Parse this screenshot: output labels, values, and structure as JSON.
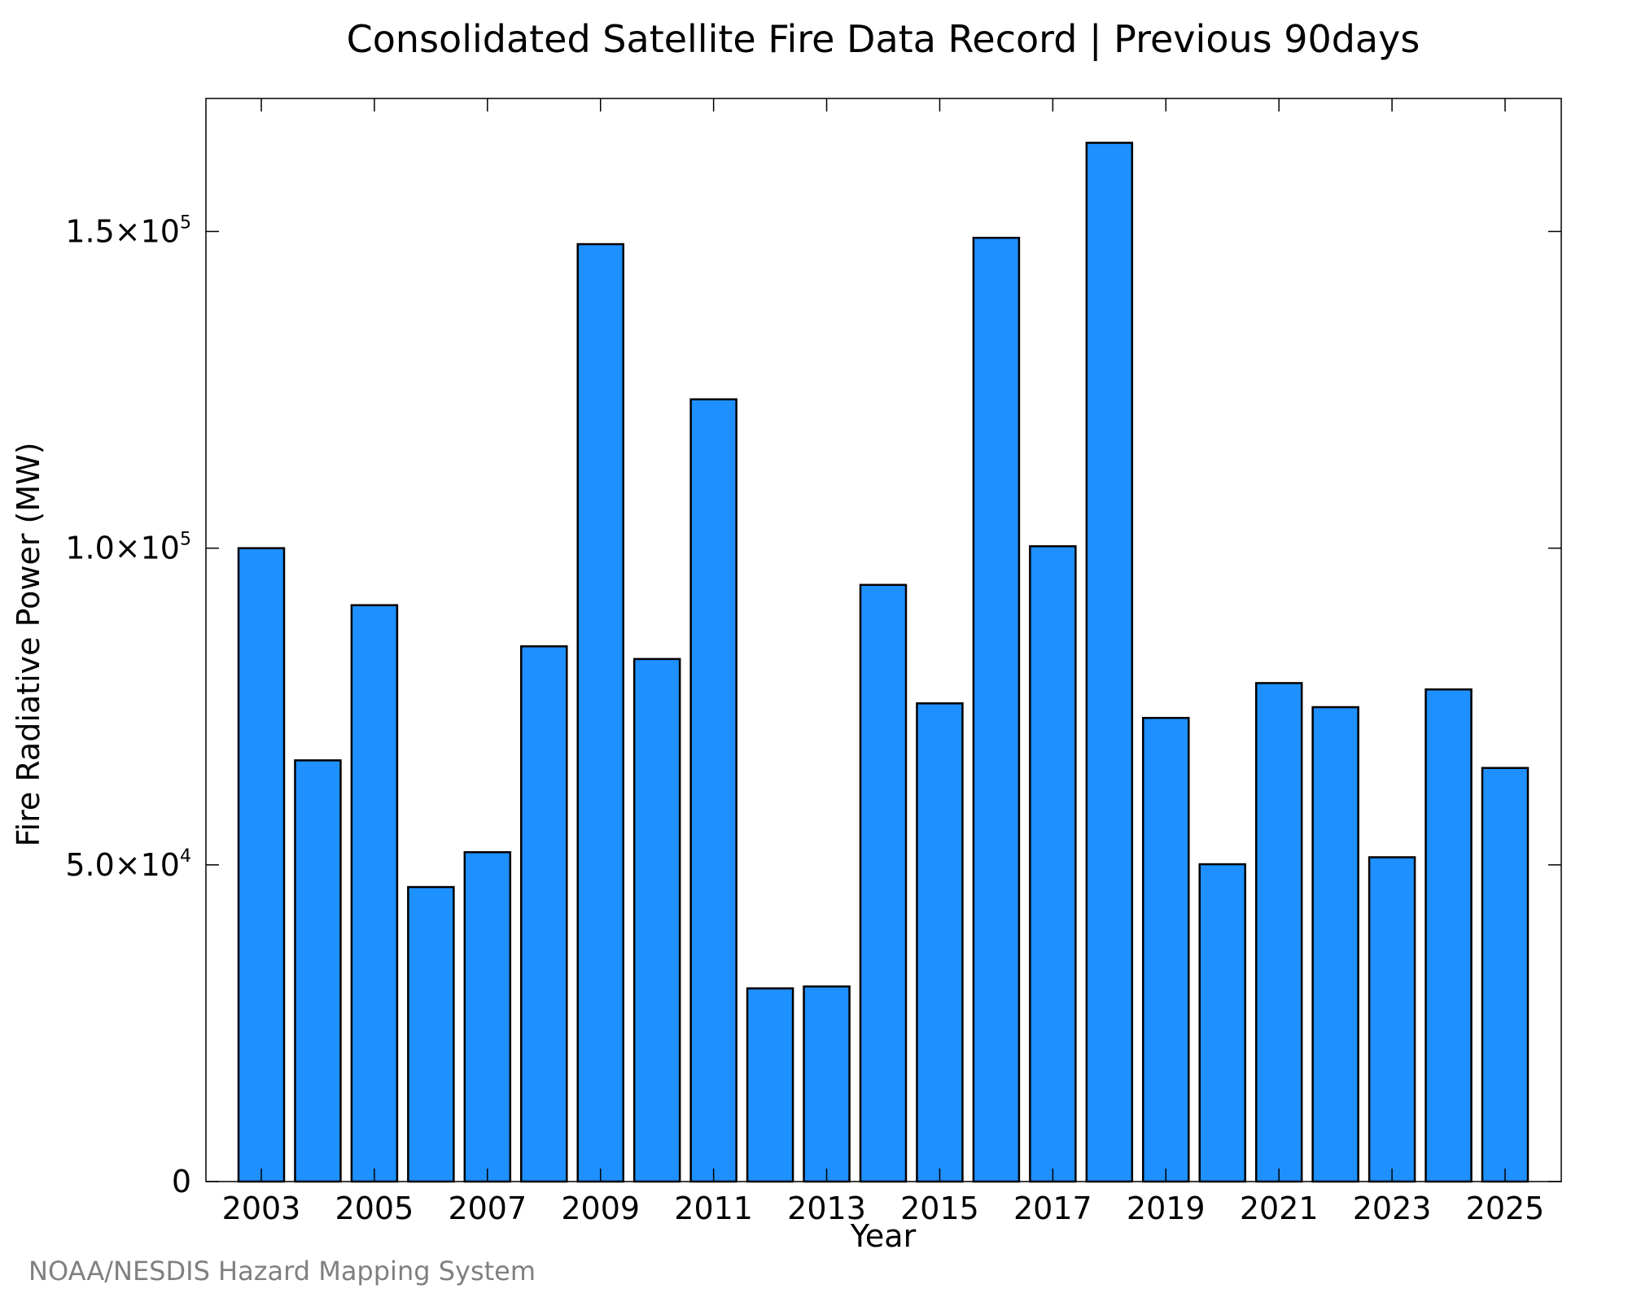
{
  "chart_data": {
    "type": "bar",
    "title": "Consolidated Satellite Fire Data Record | Previous 90days",
    "xlabel": "Year",
    "ylabel": "Fire Radiative Power (MW)",
    "categories": [
      "2003",
      "2004",
      "2005",
      "2006",
      "2007",
      "2008",
      "2009",
      "2010",
      "2011",
      "2012",
      "2013",
      "2014",
      "2015",
      "2016",
      "2017",
      "2018",
      "2019",
      "2020",
      "2021",
      "2022",
      "2023",
      "2024",
      "2025"
    ],
    "values": [
      100000,
      66500,
      91000,
      46500,
      52000,
      84500,
      148000,
      82500,
      123500,
      30500,
      30800,
      94200,
      75500,
      149000,
      100300,
      164000,
      73200,
      50100,
      78700,
      74900,
      51200,
      77700,
      65300
    ],
    "x_tick_labels": [
      "2003",
      "2005",
      "2007",
      "2009",
      "2011",
      "2013",
      "2015",
      "2017",
      "2019",
      "2021",
      "2023",
      "2025"
    ],
    "y_ticks": [
      {
        "value": 0,
        "mantissa": "0",
        "exponent": ""
      },
      {
        "value": 50000,
        "mantissa": "5.0×10",
        "exponent": "4"
      },
      {
        "value": 100000,
        "mantissa": "1.0×10",
        "exponent": "5"
      },
      {
        "value": 150000,
        "mantissa": "1.5×10",
        "exponent": "5"
      }
    ],
    "ylim": [
      0,
      171000
    ],
    "grid": false,
    "legend": "none",
    "bar_color": "#1e90ff",
    "bar_edge_color": "#000000"
  },
  "source": "NOAA/NESDIS Hazard Mapping System"
}
